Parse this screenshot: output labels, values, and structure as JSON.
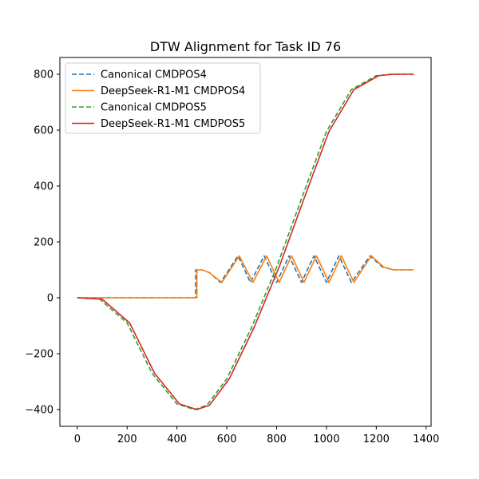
{
  "chart_data": {
    "type": "line",
    "title": "DTW Alignment for Task ID 76",
    "xlabel": "",
    "ylabel": "",
    "xlim": [
      -70,
      1420
    ],
    "ylim": [
      -460,
      860
    ],
    "xticks": [
      0,
      200,
      400,
      600,
      800,
      1000,
      1200,
      1400
    ],
    "yticks": [
      -400,
      -200,
      0,
      200,
      400,
      600,
      800
    ],
    "xtick_labels": [
      "0",
      "200",
      "400",
      "600",
      "800",
      "1000",
      "1200",
      "1400"
    ],
    "ytick_labels": [
      "−400",
      "−200",
      "0",
      "200",
      "400",
      "600",
      "800"
    ],
    "grid": false,
    "legend_position": "top-left",
    "series": [
      {
        "name": "Canonical CMDPOS4",
        "color": "#1f77b4",
        "dashed": true,
        "x": [
          0,
          475,
          475,
          500,
          530,
          575,
          645,
          695,
          750,
          800,
          850,
          900,
          950,
          1000,
          1050,
          1100,
          1175,
          1225,
          1270,
          1350
        ],
        "y": [
          0,
          0,
          100,
          100,
          90,
          55,
          150,
          55,
          150,
          55,
          150,
          55,
          150,
          55,
          150,
          55,
          150,
          110,
          100,
          100
        ]
      },
      {
        "name": "DeepSeek-R1-M1 CMDPOS4",
        "color": "#ff7f0e",
        "dashed": false,
        "x": [
          0,
          480,
          480,
          500,
          530,
          580,
          650,
          705,
          760,
          810,
          860,
          910,
          960,
          1010,
          1060,
          1110,
          1180,
          1230,
          1270,
          1350
        ],
        "y": [
          0,
          0,
          100,
          100,
          90,
          55,
          150,
          55,
          150,
          55,
          150,
          55,
          150,
          55,
          150,
          55,
          150,
          110,
          100,
          100
        ]
      },
      {
        "name": "Canonical CMDPOS5",
        "color": "#2ca02c",
        "dashed": true,
        "x": [
          0,
          90,
          200,
          300,
          400,
          470,
          520,
          600,
          700,
          800,
          900,
          1000,
          1100,
          1200,
          1260,
          1350
        ],
        "y": [
          0,
          -5,
          -90,
          -270,
          -380,
          -400,
          -385,
          -290,
          -105,
          110,
          355,
          595,
          745,
          795,
          800,
          800
        ]
      },
      {
        "name": "DeepSeek-R1-M1 CMDPOS5",
        "color": "#d62728",
        "dashed": false,
        "x": [
          0,
          100,
          210,
          310,
          410,
          480,
          530,
          610,
          710,
          810,
          910,
          1010,
          1110,
          1210,
          1270,
          1350
        ],
        "y": [
          0,
          -5,
          -90,
          -270,
          -380,
          -400,
          -385,
          -290,
          -105,
          110,
          355,
          595,
          745,
          795,
          800,
          800
        ]
      }
    ]
  }
}
